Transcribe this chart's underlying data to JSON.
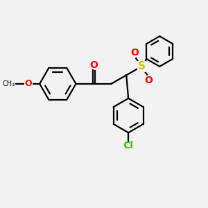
{
  "background_color": "#f2f2f2",
  "line_color": "#000000",
  "O_color": "#ff0000",
  "S_color": "#cccc00",
  "Cl_color": "#33cc00",
  "line_width": 1.6,
  "figsize": [
    3.0,
    3.0
  ],
  "dpi": 100,
  "xlim": [
    0,
    10
  ],
  "ylim": [
    0,
    10
  ]
}
